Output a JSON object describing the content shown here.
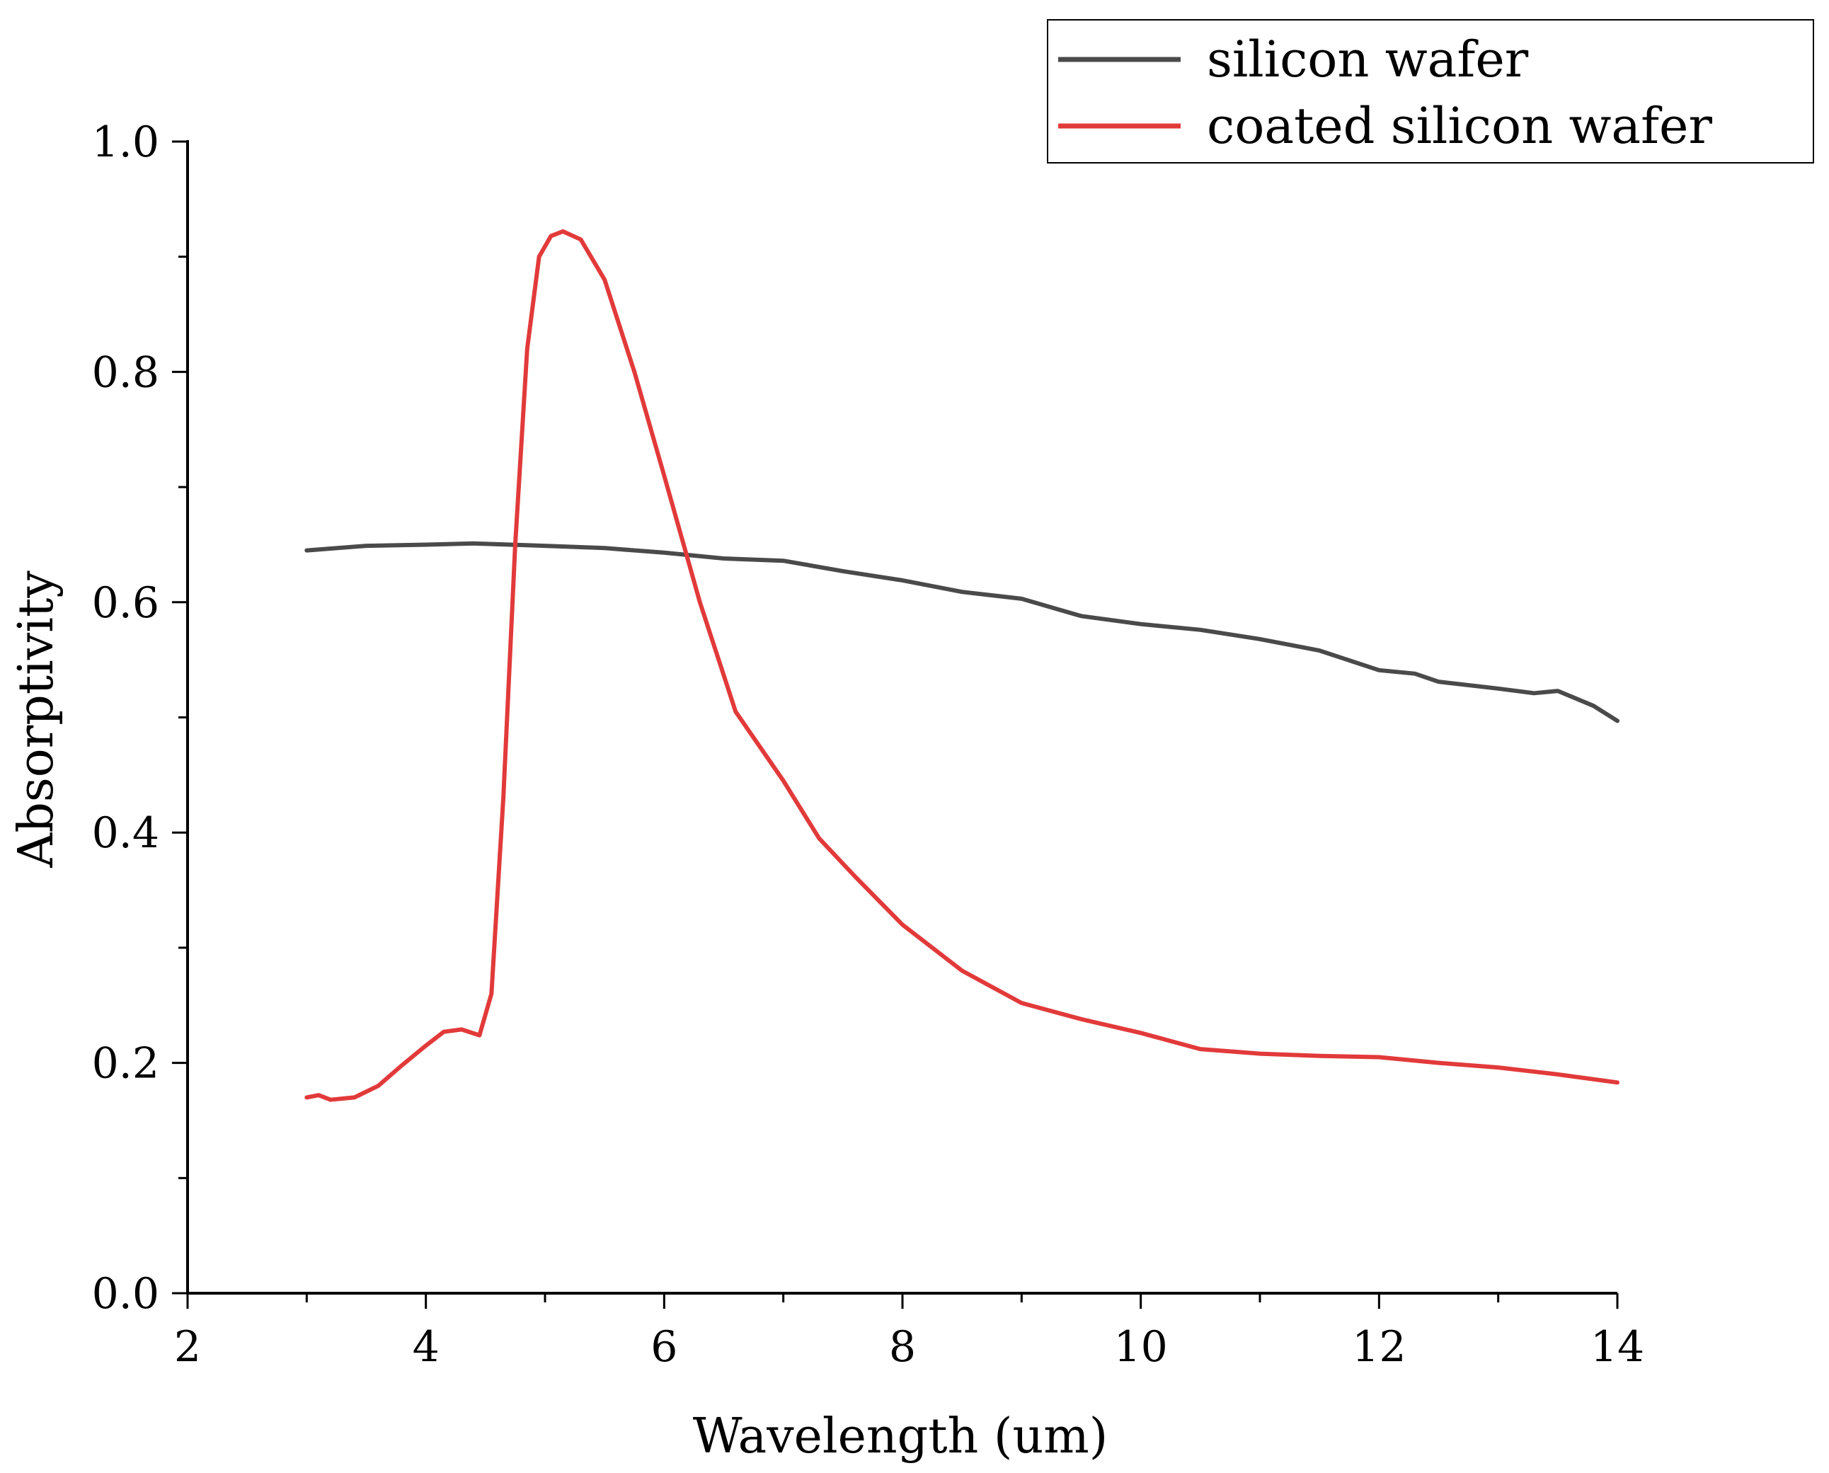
{
  "chart_data": {
    "type": "line",
    "title": "",
    "xlabel": "Wavelength (um)",
    "ylabel": "Absorptivity",
    "xlim": [
      2,
      14
    ],
    "ylim": [
      0.0,
      1.0
    ],
    "x_ticks": [
      "2",
      "4",
      "6",
      "8",
      "10",
      "12",
      "14"
    ],
    "y_ticks": [
      "0.0",
      "0.2",
      "0.4",
      "0.6",
      "0.8",
      "1.0"
    ],
    "grid": false,
    "legend_position": "top-right",
    "series": [
      {
        "name": "silicon wafer",
        "color": "#4a4a4a",
        "x": [
          3.0,
          3.5,
          4.0,
          4.4,
          5.0,
          5.5,
          6.0,
          6.5,
          7.0,
          7.5,
          8.0,
          8.5,
          9.0,
          9.5,
          10.0,
          10.5,
          11.0,
          11.5,
          12.0,
          12.3,
          12.5,
          13.0,
          13.3,
          13.5,
          13.8,
          14.0
        ],
        "y": [
          0.645,
          0.649,
          0.65,
          0.651,
          0.649,
          0.647,
          0.643,
          0.638,
          0.636,
          0.627,
          0.619,
          0.609,
          0.603,
          0.588,
          0.581,
          0.576,
          0.568,
          0.558,
          0.541,
          0.538,
          0.531,
          0.525,
          0.521,
          0.523,
          0.51,
          0.497
        ]
      },
      {
        "name": "coated silicon wafer",
        "color": "#e23a3a",
        "x": [
          3.0,
          3.1,
          3.2,
          3.4,
          3.6,
          3.8,
          4.0,
          4.15,
          4.3,
          4.45,
          4.55,
          4.65,
          4.75,
          4.85,
          4.95,
          5.05,
          5.15,
          5.3,
          5.5,
          5.75,
          6.0,
          6.3,
          6.6,
          7.0,
          7.3,
          7.6,
          8.0,
          8.5,
          9.0,
          9.5,
          10.0,
          10.5,
          11.0,
          11.5,
          12.0,
          12.5,
          13.0,
          13.5,
          14.0
        ],
        "y": [
          0.17,
          0.172,
          0.168,
          0.17,
          0.18,
          0.198,
          0.215,
          0.227,
          0.229,
          0.224,
          0.26,
          0.43,
          0.65,
          0.82,
          0.9,
          0.918,
          0.922,
          0.915,
          0.88,
          0.8,
          0.71,
          0.6,
          0.505,
          0.445,
          0.395,
          0.362,
          0.32,
          0.28,
          0.252,
          0.238,
          0.226,
          0.212,
          0.208,
          0.206,
          0.205,
          0.2,
          0.196,
          0.19,
          0.183
        ]
      }
    ]
  }
}
